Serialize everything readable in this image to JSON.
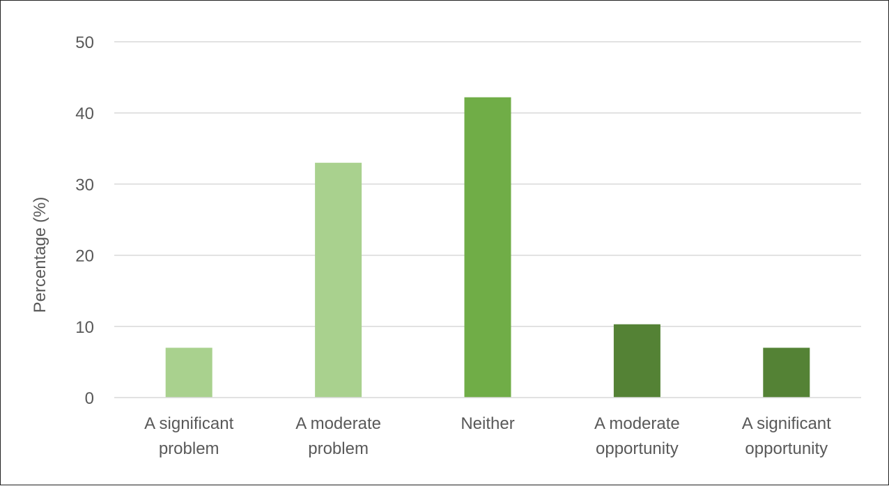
{
  "chart_data": {
    "type": "bar",
    "title": "",
    "xlabel": "",
    "ylabel": "Percentage (%)",
    "ylim": [
      0,
      50
    ],
    "yticks": [
      0,
      10,
      20,
      30,
      40,
      50
    ],
    "grid": true,
    "legend": "none",
    "categories": [
      [
        "A significant",
        "problem"
      ],
      [
        "A moderate",
        "problem"
      ],
      [
        "Neither"
      ],
      [
        "A moderate",
        "opportunity"
      ],
      [
        "A significant",
        "opportunity"
      ]
    ],
    "values": [
      7,
      33,
      42.2,
      10.3,
      7
    ],
    "colors": [
      "#a9d18e",
      "#a9d18e",
      "#70ad47",
      "#548235",
      "#548235"
    ],
    "gridline_color": "#d9d9d9",
    "axis_color": "#d9d9d9"
  }
}
